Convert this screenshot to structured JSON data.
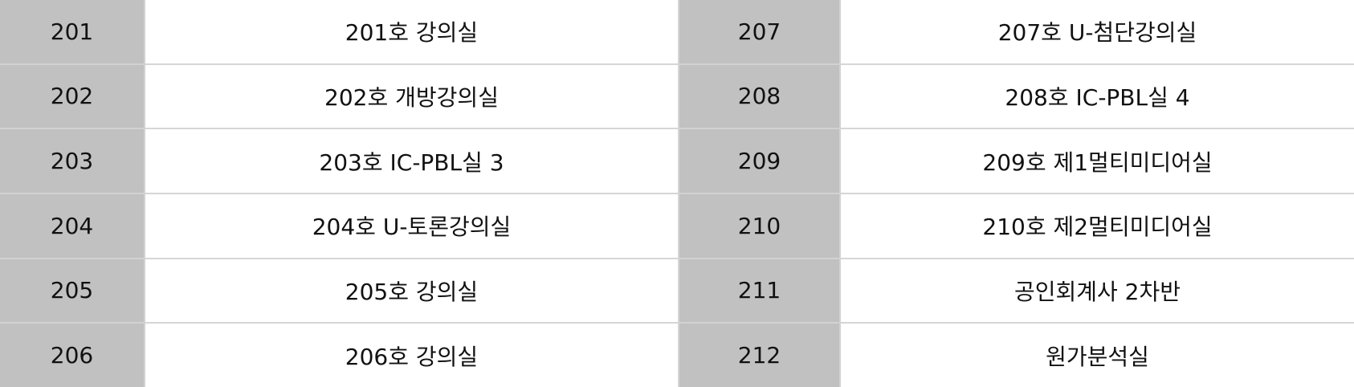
{
  "table": {
    "rows": [
      {
        "left_num": "201",
        "left_name": "201호 강의실",
        "right_num": "207",
        "right_name": "207호 U-첨단강의실"
      },
      {
        "left_num": "202",
        "left_name": "202호 개방강의실",
        "right_num": "208",
        "right_name": "208호 IC-PBL실 4"
      },
      {
        "left_num": "203",
        "left_name": "203호 IC-PBL실 3",
        "right_num": "209",
        "right_name": "209호 제1멀티미디어실"
      },
      {
        "left_num": "204",
        "left_name": "204호 U-토론강의실",
        "right_num": "210",
        "right_name": "210호 제2멀티미디어실"
      },
      {
        "left_num": "205",
        "left_name": "205호 강의실",
        "right_num": "211",
        "right_name": "공인회계사 2차반"
      },
      {
        "left_num": "206",
        "left_name": "206호 강의실",
        "right_num": "212",
        "right_name": "원가분석실"
      }
    ]
  },
  "colors": {
    "number_cell_bg": "#c1c1c1",
    "name_cell_bg": "#ffffff",
    "border": "#d6d6d6"
  }
}
